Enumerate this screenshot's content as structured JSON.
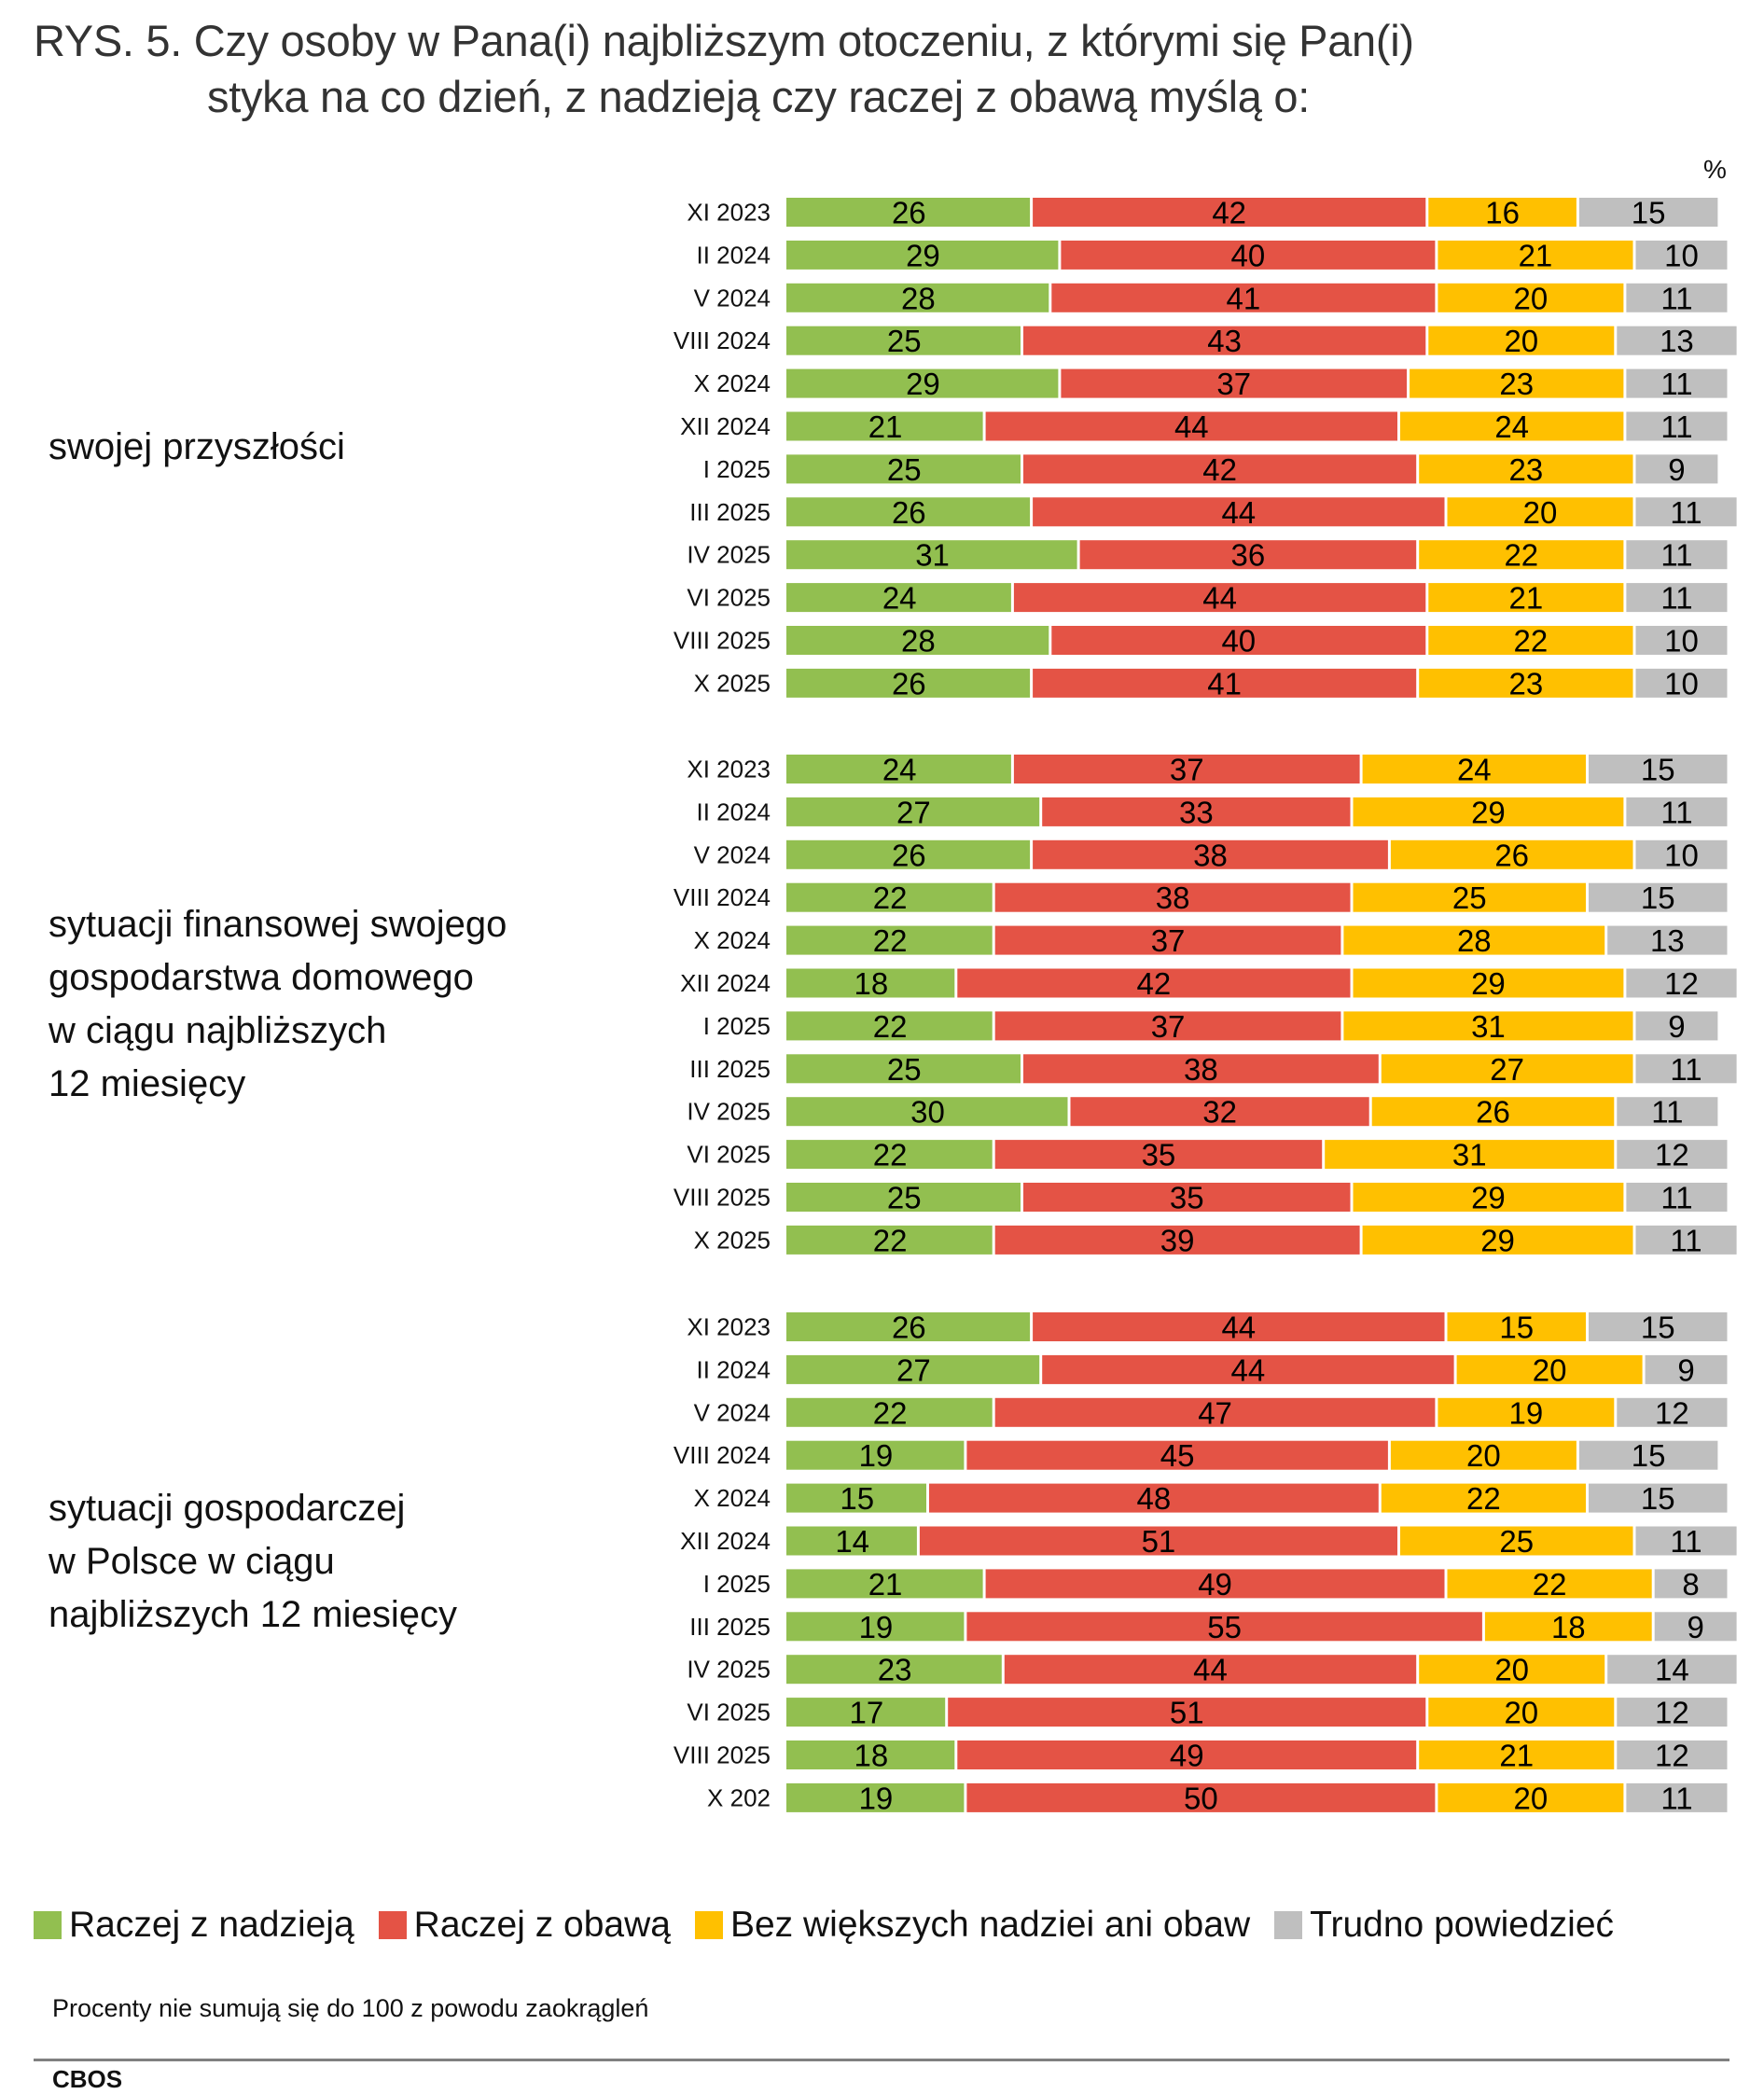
{
  "title": {
    "line1": "RYS. 5. Czy osoby w Pana(i) najbliższym otoczeniu, z którymi się Pan(i)",
    "line2": "styka na co dzień, z nadzieją czy raczej z obawą myślą o:"
  },
  "unit_label": "%",
  "colors": {
    "hope": "#92BF50",
    "fear": "#E45345",
    "neutral": "#FFC000",
    "hard_to_say": "#BFBFBF"
  },
  "legend": [
    {
      "label": "Raczej z nadzieją",
      "color": "#92BF50"
    },
    {
      "label": "Raczej z obawą",
      "color": "#E45345"
    },
    {
      "label": "Bez większych nadziei ani obaw",
      "color": "#FFC000"
    },
    {
      "label": "Trudno powiedzieć",
      "color": "#BFBFBF"
    }
  ],
  "footnote": "Procenty nie sumują się do 100 z powodu zaokrągleń",
  "source": "CBOS",
  "chart_data": {
    "type": "bar",
    "orientation": "horizontal",
    "stacked": true,
    "title": "RYS. 5. Czy osoby w Pana(i) najbliższym otoczeniu, z którymi się Pan(i) styka na co dzień, z nadzieją czy raczej z obawą myślą o:",
    "unit": "%",
    "xlim": [
      0,
      100
    ],
    "grid": false,
    "legend_position": "bottom",
    "series_names": [
      "Raczej z nadzieją",
      "Raczej z obawą",
      "Bez większych nadziei ani obaw",
      "Trudno powiedzieć"
    ],
    "groups": [
      {
        "label_lines": [
          "swojej przyszłości"
        ],
        "categories": [
          "XI 2023",
          "II 2024",
          "V 2024",
          "VIII 2024",
          "X 2024",
          "XII 2024",
          "I 2025",
          "III 2025",
          "IV 2025",
          "VI 2025",
          "VIII 2025",
          "X 2025"
        ],
        "series": [
          {
            "name": "Raczej z nadzieją",
            "values": [
              26,
              29,
              28,
              25,
              29,
              21,
              25,
              26,
              31,
              24,
              28,
              26
            ]
          },
          {
            "name": "Raczej z obawą",
            "values": [
              42,
              40,
              41,
              43,
              37,
              44,
              42,
              44,
              36,
              44,
              40,
              41
            ]
          },
          {
            "name": "Bez większych nadziei ani obaw",
            "values": [
              16,
              21,
              20,
              20,
              23,
              24,
              23,
              20,
              22,
              21,
              22,
              23
            ]
          },
          {
            "name": "Trudno powiedzieć",
            "values": [
              15,
              10,
              11,
              13,
              11,
              11,
              9,
              11,
              11,
              11,
              10,
              10
            ]
          }
        ]
      },
      {
        "label_lines": [
          "sytuacji finansowej swojego",
          "gospodarstwa domowego",
          "w ciągu najbliższych",
          "12 miesięcy"
        ],
        "categories": [
          "XI 2023",
          "II 2024",
          "V 2024",
          "VIII 2024",
          "X 2024",
          "XII 2024",
          "I 2025",
          "III 2025",
          "IV 2025",
          "VI 2025",
          "VIII 2025",
          "X 2025"
        ],
        "series": [
          {
            "name": "Raczej z nadzieją",
            "values": [
              24,
              27,
              26,
              22,
              22,
              18,
              22,
              25,
              30,
              22,
              25,
              22
            ]
          },
          {
            "name": "Raczej z obawą",
            "values": [
              37,
              33,
              38,
              38,
              37,
              42,
              37,
              38,
              32,
              35,
              35,
              39
            ]
          },
          {
            "name": "Bez większych nadziei ani obaw",
            "values": [
              24,
              29,
              26,
              25,
              28,
              29,
              31,
              27,
              26,
              31,
              29,
              29
            ]
          },
          {
            "name": "Trudno powiedzieć",
            "values": [
              15,
              11,
              10,
              15,
              13,
              12,
              9,
              11,
              11,
              12,
              11,
              11
            ]
          }
        ]
      },
      {
        "label_lines": [
          "sytuacji gospodarczej",
          "w Polsce w ciągu",
          "najbliższych 12 miesięcy"
        ],
        "categories": [
          "XI 2023",
          "II 2024",
          "V 2024",
          "VIII 2024",
          "X 2024",
          "XII 2024",
          "I 2025",
          "III 2025",
          "IV 2025",
          "VI 2025",
          "VIII 2025",
          "X 202"
        ],
        "series": [
          {
            "name": "Raczej z nadzieją",
            "values": [
              26,
              27,
              22,
              19,
              15,
              14,
              21,
              19,
              23,
              17,
              18,
              19
            ]
          },
          {
            "name": "Raczej z obawą",
            "values": [
              44,
              44,
              47,
              45,
              48,
              51,
              49,
              55,
              44,
              51,
              49,
              50
            ]
          },
          {
            "name": "Bez większych nadziei ani obaw",
            "values": [
              15,
              20,
              19,
              20,
              22,
              25,
              22,
              18,
              20,
              20,
              21,
              20
            ]
          },
          {
            "name": "Trudno powiedzieć",
            "values": [
              15,
              9,
              12,
              15,
              15,
              11,
              8,
              9,
              14,
              12,
              12,
              11
            ]
          }
        ]
      }
    ]
  }
}
